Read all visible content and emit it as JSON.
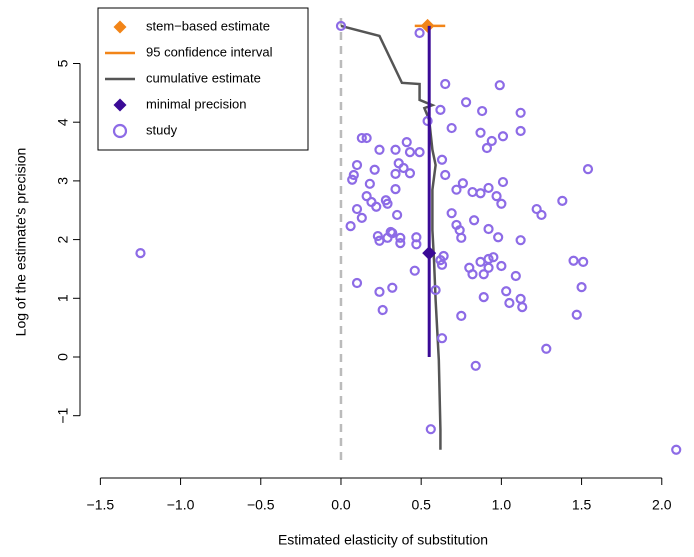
{
  "chart_data": {
    "type": "scatter",
    "x_label": "Estimated elasticity of substitution",
    "y_label": "Log of the estimate's precision",
    "xlim": [
      -1.627,
      2.151
    ],
    "ylim": [
      -1.84,
      5.775
    ],
    "xticks": [
      {
        "value": -1.5,
        "label": "−1.5"
      },
      {
        "value": -1.0,
        "label": "−1.0"
      },
      {
        "value": -0.5,
        "label": "−0.5"
      },
      {
        "value": 0,
        "label": "0.0"
      },
      {
        "value": 0.5,
        "label": "0.5"
      },
      {
        "value": 1.0,
        "label": "1.0"
      },
      {
        "value": 1.5,
        "label": "1.5"
      },
      {
        "value": 2.0,
        "label": "2.0"
      }
    ],
    "yticks": [
      {
        "value": -1,
        "label": "−1"
      },
      0,
      1,
      2,
      3,
      4,
      5
    ],
    "reference_x": 0,
    "series": [
      {
        "name": "stem−based estimate",
        "mark": "diamond",
        "color": "#f28518",
        "x": [
          0.54
        ],
        "y": [
          5.64
        ]
      },
      {
        "name": "95 confidence interval",
        "mark": "segment",
        "color": "#f28518",
        "x": [
          0.46,
          0.65
        ],
        "y": [
          5.64,
          5.64
        ]
      },
      {
        "name": "cumulative estimate",
        "mark": "line",
        "color": "#555555",
        "x": [
          0,
          0.24,
          0.38,
          0.49,
          0.49,
          0.57,
          0.52,
          0.55,
          0.57,
          0.59,
          0.57,
          0.57,
          0.58,
          0.59,
          0.61,
          0.62,
          0.62
        ],
        "y": [
          5.64,
          5.47,
          4.67,
          4.65,
          4.38,
          4.29,
          4.24,
          4.04,
          3.53,
          3.27,
          2.85,
          2.16,
          1.65,
          0.97,
          -0.05,
          -1.24,
          -1.58
        ]
      },
      {
        "name": "minimal precision",
        "mark": "diamond",
        "color": "#3a0a96",
        "x": [
          0.55
        ],
        "y": [
          1.77
        ],
        "line_x": [
          0.55,
          0.55
        ],
        "line_y": [
          0,
          5.64
        ]
      },
      {
        "name": "study",
        "mark": "points",
        "color": "#8d6be6",
        "x": [
          0,
          0.49,
          0.65,
          0.99,
          0.78,
          0.62,
          0.88,
          1.12,
          0.54,
          0.69,
          1.12,
          0.87,
          1.01,
          0.94,
          0.91,
          0.13,
          0.16,
          0.41,
          0.43,
          0.24,
          0.34,
          0.49,
          0.63,
          0.36,
          0.39,
          0.1,
          0.21,
          0.08,
          0.07,
          0.34,
          0.43,
          0.65,
          0.18,
          0.76,
          1.01,
          0.92,
          1.54,
          0.72,
          0.82,
          0.87,
          0.34,
          0.16,
          0.19,
          0.28,
          0.29,
          0.22,
          0.97,
          1.0,
          1.38,
          1.22,
          1.25,
          0.1,
          0.69,
          0.13,
          0.35,
          0.72,
          0.74,
          0.06,
          0.83,
          0.92,
          0.31,
          0.32,
          0.29,
          0.23,
          0.24,
          0.37,
          0.47,
          0.37,
          0.47,
          0.75,
          0.98,
          1.12,
          0.64,
          0.62,
          0.63,
          0.92,
          0.95,
          0.87,
          0.92,
          1.0,
          0.8,
          0.82,
          0.89,
          1.09,
          1.45,
          1.51,
          0.46,
          -1.25,
          0.1,
          0.32,
          0.24,
          0.59,
          1.03,
          1.5,
          1.12,
          1.05,
          0.89,
          1.13,
          0.26,
          0.75,
          1.47,
          0.63,
          1.28,
          0.84,
          0.56,
          2.09
        ],
        "y": [
          5.64,
          5.52,
          4.65,
          4.63,
          4.34,
          4.21,
          4.19,
          4.16,
          4.02,
          3.9,
          3.85,
          3.82,
          3.76,
          3.68,
          3.56,
          3.73,
          3.73,
          3.66,
          3.49,
          3.53,
          3.53,
          3.49,
          3.36,
          3.3,
          3.22,
          3.27,
          3.19,
          3.1,
          3.02,
          3.12,
          3.13,
          3.1,
          2.95,
          2.96,
          2.98,
          2.88,
          3.2,
          2.85,
          2.81,
          2.79,
          2.86,
          2.74,
          2.64,
          2.67,
          2.61,
          2.56,
          2.74,
          2.61,
          2.66,
          2.52,
          2.42,
          2.52,
          2.45,
          2.37,
          2.42,
          2.25,
          2.16,
          2.23,
          2.33,
          2.18,
          2.13,
          2.11,
          2.03,
          2.06,
          1.98,
          2.03,
          2.04,
          1.94,
          1.92,
          2.03,
          2.04,
          1.99,
          1.72,
          1.65,
          1.57,
          1.67,
          1.7,
          1.62,
          1.52,
          1.55,
          1.52,
          1.41,
          1.41,
          1.38,
          1.64,
          1.62,
          1.47,
          1.77,
          1.26,
          1.18,
          1.11,
          1.14,
          1.12,
          1.19,
          0.99,
          0.92,
          1.02,
          0.85,
          0.8,
          0.7,
          0.72,
          0.32,
          0.14,
          -0.15,
          -1.23,
          -1.58
        ]
      }
    ]
  }
}
